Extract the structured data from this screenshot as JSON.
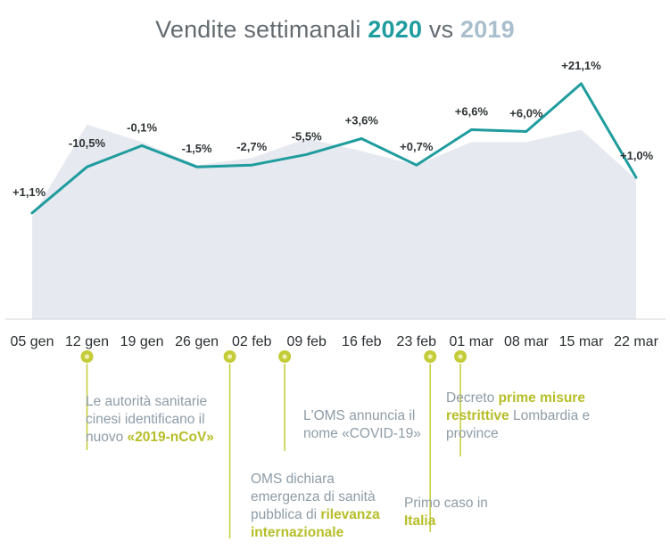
{
  "title": {
    "prefix": "Vendite settimanali",
    "year_current": "2020",
    "vs": "vs",
    "year_previous": "2019"
  },
  "colors": {
    "series_2020": "#1f9c9e",
    "series_2019_area": "#e6e9ef",
    "event_marker": "#c4cc38",
    "event_line": "#c4cc38",
    "title_text": "#636b70",
    "note_text": "#8e9ca7",
    "note_highlight": "#b6be28"
  },
  "chart_data": {
    "type": "line",
    "categories": [
      "05 gen",
      "12 gen",
      "19 gen",
      "26 gen",
      "02 feb",
      "09 feb",
      "16 feb",
      "23 feb",
      "01 mar",
      "08 mar",
      "15 mar",
      "22 mar"
    ],
    "data_labels": [
      "+1,1%",
      "-10,5%",
      "-0,1%",
      "-1,5%",
      "-2,7%",
      "-5,5%",
      "+3,6%",
      "+0,7%",
      "+6,6%",
      "+6,0%",
      "+21,1%",
      "+1,0%"
    ],
    "series": [
      {
        "name": "2020",
        "style": "line",
        "values": [
          30,
          43,
          49,
          43,
          43.5,
          46.5,
          51,
          43.5,
          53.5,
          53,
          66.5,
          40
        ]
      },
      {
        "name": "2019",
        "style": "area",
        "values": [
          29,
          55,
          50,
          43.5,
          45.5,
          51,
          47.5,
          43.5,
          50,
          50,
          53.5,
          39.5
        ]
      }
    ],
    "xlabel": "",
    "ylabel": "",
    "y_axis_shown": false,
    "ylim": [
      0,
      70
    ],
    "grid": false,
    "legend": "none"
  },
  "events": [
    {
      "week_index": 1,
      "note": [
        {
          "t": "Le autorità sanitarie cinesi identificano il nuovo "
        },
        {
          "t": "«2019-nCoV»",
          "hl": true
        }
      ]
    },
    {
      "week_index": 3.6,
      "note": [
        {
          "t": "OMS dichiara emergenza di sanità pubblica di "
        },
        {
          "t": "rilevanza internazionale",
          "hl": true
        }
      ]
    },
    {
      "week_index": 4.6,
      "note": [
        {
          "t": "L'OMS annuncia il nome «COVID-19»"
        }
      ]
    },
    {
      "week_index": 7.25,
      "note": [
        {
          "t": "Primo caso in "
        },
        {
          "t": "Italia",
          "hl": true
        }
      ]
    },
    {
      "week_index": 7.8,
      "note": [
        {
          "t": "Decreto "
        },
        {
          "t": "prime misure restrittive",
          "hl": true
        },
        {
          "t": " Lombardia e province"
        }
      ]
    }
  ]
}
